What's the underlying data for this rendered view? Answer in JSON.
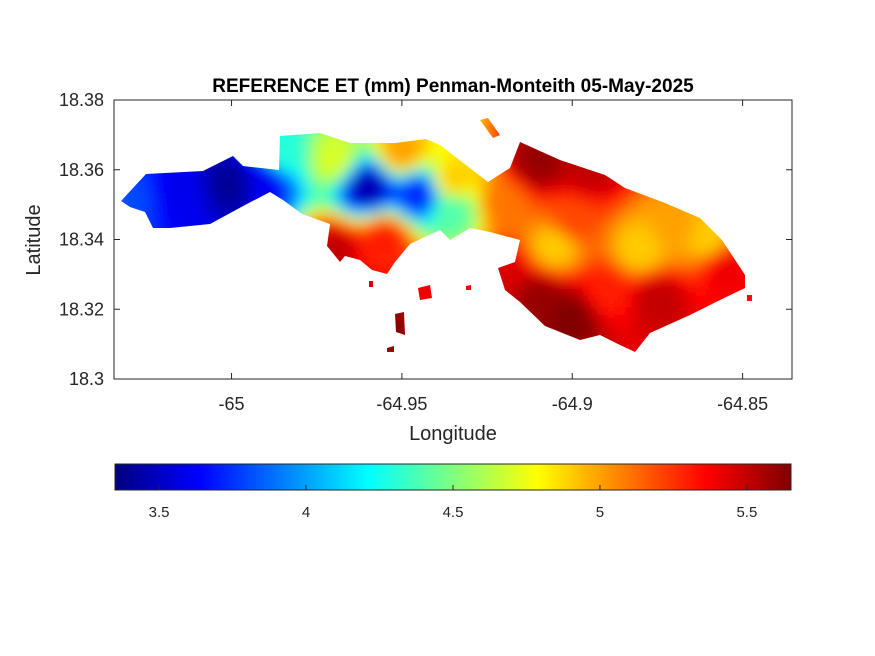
{
  "chart_data": {
    "type": "heatmap",
    "title": "REFERENCE ET (mm) Penman-Monteith 05-May-2025",
    "xlabel": "Longitude",
    "ylabel": "Latitude",
    "xlim": [
      -65.0345,
      -64.8355
    ],
    "ylim": [
      18.3,
      18.38
    ],
    "xticks": [
      -65,
      -64.95,
      -64.9,
      -64.85
    ],
    "xtick_labels": [
      "-65",
      "-64.95",
      "-64.9",
      "-64.85"
    ],
    "yticks": [
      18.3,
      18.32,
      18.34,
      18.36,
      18.38
    ],
    "ytick_labels": [
      "18.3",
      "18.32",
      "18.34",
      "18.36",
      "18.38"
    ],
    "grid": false,
    "colormap": "jet",
    "colorbar": {
      "orientation": "horizontal",
      "location": "below",
      "clim": [
        3.35,
        5.65
      ],
      "ticks": [
        3.5,
        4,
        4.5,
        5,
        5.5
      ],
      "tick_labels": [
        "3.5",
        "4",
        "4.5",
        "5",
        "5.5"
      ]
    },
    "field_samples": [
      {
        "lon": -65.03,
        "lat": 18.351,
        "value": 3.8
      },
      {
        "lon": -65.015,
        "lat": 18.353,
        "value": 3.6
      },
      {
        "lon": -65.0,
        "lat": 18.356,
        "value": 3.4
      },
      {
        "lon": -64.99,
        "lat": 18.357,
        "value": 3.6
      },
      {
        "lon": -64.985,
        "lat": 18.364,
        "value": 4.3
      },
      {
        "lon": -64.97,
        "lat": 18.363,
        "value": 4.7
      },
      {
        "lon": -64.96,
        "lat": 18.355,
        "value": 3.45
      },
      {
        "lon": -64.945,
        "lat": 18.353,
        "value": 3.7
      },
      {
        "lon": -64.935,
        "lat": 18.348,
        "value": 4.4
      },
      {
        "lon": -64.935,
        "lat": 18.357,
        "value": 4.9
      },
      {
        "lon": -64.955,
        "lat": 18.34,
        "value": 5.3
      },
      {
        "lon": -64.97,
        "lat": 18.337,
        "value": 5.5
      },
      {
        "lon": -64.95,
        "lat": 18.365,
        "value": 5.0
      },
      {
        "lon": -64.92,
        "lat": 18.35,
        "value": 5.1
      },
      {
        "lon": -64.91,
        "lat": 18.362,
        "value": 5.6
      },
      {
        "lon": -64.895,
        "lat": 18.36,
        "value": 5.5
      },
      {
        "lon": -64.9,
        "lat": 18.345,
        "value": 5.2
      },
      {
        "lon": -64.905,
        "lat": 18.338,
        "value": 4.9
      },
      {
        "lon": -64.88,
        "lat": 18.337,
        "value": 4.9
      },
      {
        "lon": -64.87,
        "lat": 18.343,
        "value": 5.0
      },
      {
        "lon": -64.86,
        "lat": 18.34,
        "value": 4.9
      },
      {
        "lon": -64.855,
        "lat": 18.332,
        "value": 5.4
      },
      {
        "lon": -64.875,
        "lat": 18.323,
        "value": 5.5
      },
      {
        "lon": -64.89,
        "lat": 18.325,
        "value": 5.3
      },
      {
        "lon": -64.91,
        "lat": 18.323,
        "value": 5.6
      },
      {
        "lon": -64.9,
        "lat": 18.318,
        "value": 5.65
      },
      {
        "lon": -64.92,
        "lat": 18.33,
        "value": 5.45
      },
      {
        "lon": -64.945,
        "lat": 18.324,
        "value": 5.4
      },
      {
        "lon": -64.955,
        "lat": 18.317,
        "value": 5.65
      }
    ]
  }
}
